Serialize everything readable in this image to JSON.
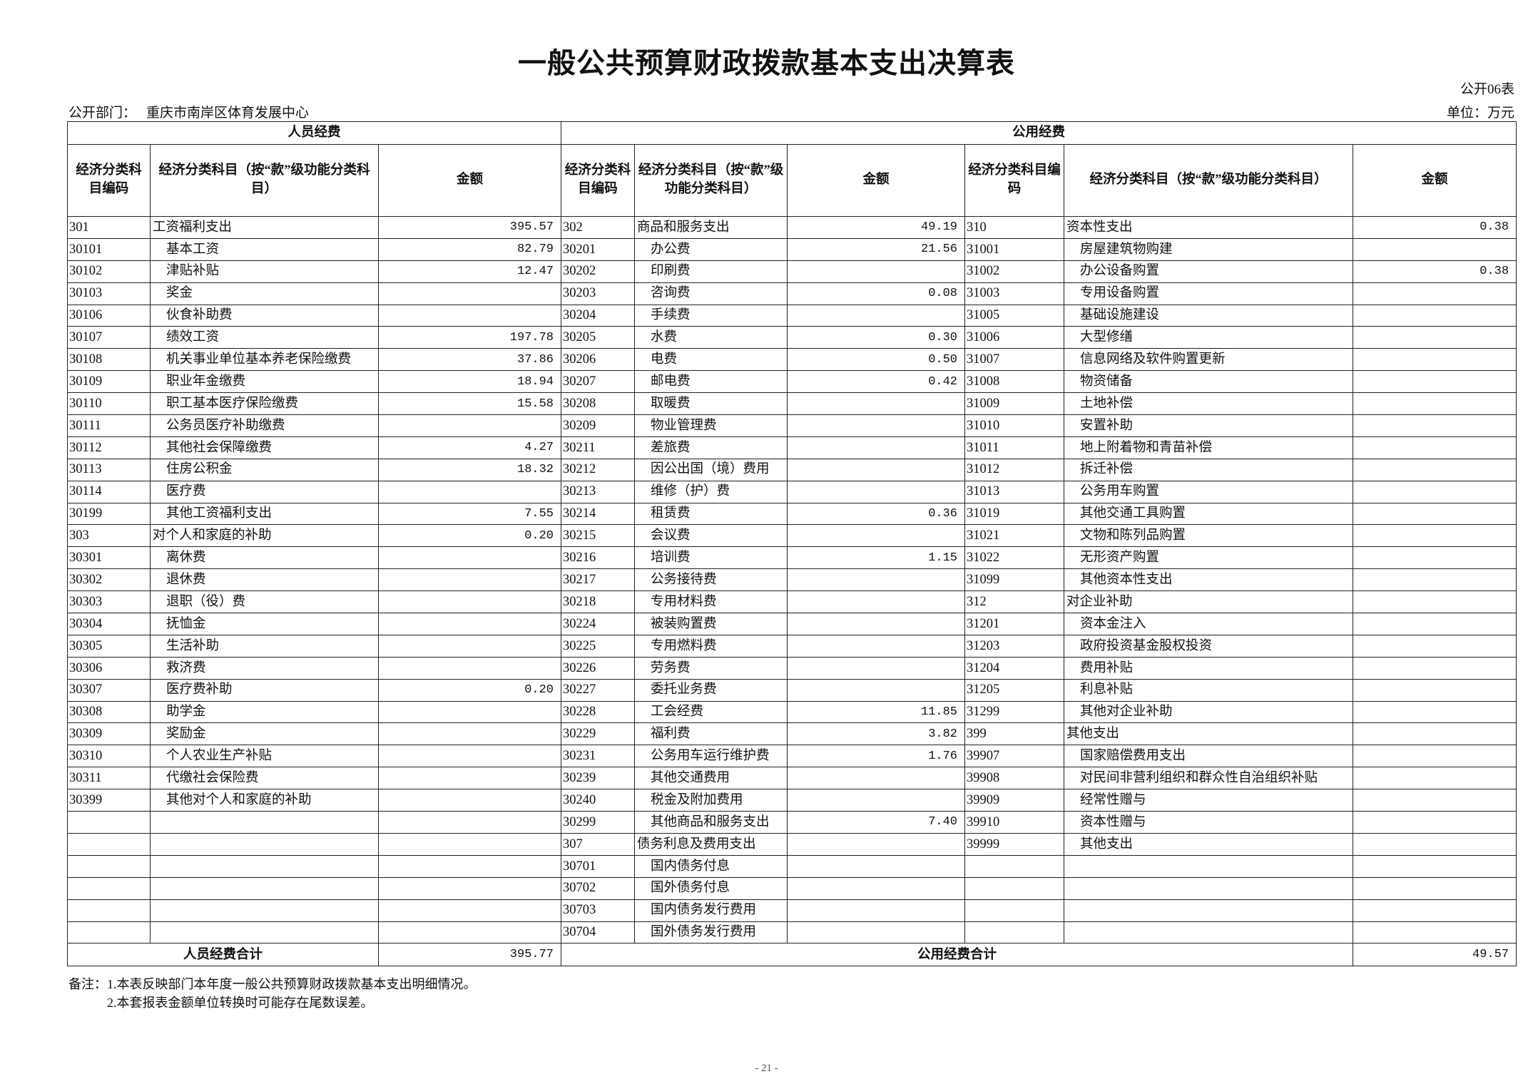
{
  "title": "一般公共预算财政拨款基本支出决算表",
  "table_no": "公开06表",
  "dept_label": "公开部门：",
  "dept_name": "重庆市南岸区体育发展中心",
  "unit": "单位：万元",
  "sections": {
    "personnel": "人员经费",
    "public": "公用经费"
  },
  "headers": {
    "p_code": "经济分类科目编码",
    "p_name": "经济分类科目（按“款”级功能分类科目）",
    "p_amt": "金额",
    "m_code": "经济分类科目编码",
    "m_name": "经济分类科目（按“款”级功能分类科目）",
    "m_amt": "金额",
    "r_code": "经济分类科目编码",
    "r_name": "经济分类科目（按“款”级功能分类科目）",
    "r_amt": "金额"
  },
  "personnel_rows": [
    [
      "301",
      "工资福利支出",
      "395.57"
    ],
    [
      "30101",
      "基本工资",
      "82.79"
    ],
    [
      "30102",
      "津贴补贴",
      "12.47"
    ],
    [
      "30103",
      "奖金",
      ""
    ],
    [
      "30106",
      "伙食补助费",
      ""
    ],
    [
      "30107",
      "绩效工资",
      "197.78"
    ],
    [
      "30108",
      "机关事业单位基本养老保险缴费",
      "37.86"
    ],
    [
      "30109",
      "职业年金缴费",
      "18.94"
    ],
    [
      "30110",
      "职工基本医疗保险缴费",
      "15.58"
    ],
    [
      "30111",
      "公务员医疗补助缴费",
      ""
    ],
    [
      "30112",
      "其他社会保障缴费",
      "4.27"
    ],
    [
      "30113",
      "住房公积金",
      "18.32"
    ],
    [
      "30114",
      "医疗费",
      ""
    ],
    [
      "30199",
      "其他工资福利支出",
      "7.55"
    ],
    [
      "303",
      "对个人和家庭的补助",
      "0.20"
    ],
    [
      "30301",
      "离休费",
      ""
    ],
    [
      "30302",
      "退休费",
      ""
    ],
    [
      "30303",
      "退职（役）费",
      ""
    ],
    [
      "30304",
      "抚恤金",
      ""
    ],
    [
      "30305",
      "生活补助",
      ""
    ],
    [
      "30306",
      "救济费",
      ""
    ],
    [
      "30307",
      "医疗费补助",
      "0.20"
    ],
    [
      "30308",
      "助学金",
      ""
    ],
    [
      "30309",
      "奖励金",
      ""
    ],
    [
      "30310",
      "个人农业生产补贴",
      ""
    ],
    [
      "30311",
      "代缴社会保险费",
      ""
    ],
    [
      "30399",
      "其他对个人和家庭的补助",
      ""
    ]
  ],
  "public_rows_mid": [
    [
      "302",
      "商品和服务支出",
      "49.19"
    ],
    [
      "30201",
      "办公费",
      "21.56"
    ],
    [
      "30202",
      "印刷费",
      ""
    ],
    [
      "30203",
      "咨询费",
      "0.08"
    ],
    [
      "30204",
      "手续费",
      ""
    ],
    [
      "30205",
      "水费",
      "0.30"
    ],
    [
      "30206",
      "电费",
      "0.50"
    ],
    [
      "30207",
      "邮电费",
      "0.42"
    ],
    [
      "30208",
      "取暖费",
      ""
    ],
    [
      "30209",
      "物业管理费",
      ""
    ],
    [
      "30211",
      "差旅费",
      ""
    ],
    [
      "30212",
      "因公出国（境）费用",
      ""
    ],
    [
      "30213",
      "维修（护）费",
      ""
    ],
    [
      "30214",
      "租赁费",
      "0.36"
    ],
    [
      "30215",
      "会议费",
      ""
    ],
    [
      "30216",
      "培训费",
      "1.15"
    ],
    [
      "30217",
      "公务接待费",
      ""
    ],
    [
      "30218",
      "专用材料费",
      ""
    ],
    [
      "30224",
      "被装购置费",
      ""
    ],
    [
      "30225",
      "专用燃料费",
      ""
    ],
    [
      "30226",
      "劳务费",
      ""
    ],
    [
      "30227",
      "委托业务费",
      ""
    ],
    [
      "30228",
      "工会经费",
      "11.85"
    ],
    [
      "30229",
      "福利费",
      "3.82"
    ],
    [
      "30231",
      "公务用车运行维护费",
      "1.76"
    ],
    [
      "30239",
      "其他交通费用",
      ""
    ],
    [
      "30240",
      "税金及附加费用",
      ""
    ],
    [
      "30299",
      "其他商品和服务支出",
      "7.40"
    ],
    [
      "307",
      "债务利息及费用支出",
      ""
    ],
    [
      "30701",
      "国内债务付息",
      ""
    ],
    [
      "30702",
      "国外债务付息",
      ""
    ],
    [
      "30703",
      "国内债务发行费用",
      ""
    ],
    [
      "30704",
      "国外债务发行费用",
      ""
    ]
  ],
  "public_rows_right": [
    [
      "310",
      "资本性支出",
      "0.38"
    ],
    [
      "31001",
      "房屋建筑物购建",
      ""
    ],
    [
      "31002",
      "办公设备购置",
      "0.38"
    ],
    [
      "31003",
      "专用设备购置",
      ""
    ],
    [
      "31005",
      "基础设施建设",
      ""
    ],
    [
      "31006",
      "大型修缮",
      ""
    ],
    [
      "31007",
      "信息网络及软件购置更新",
      ""
    ],
    [
      "31008",
      "物资储备",
      ""
    ],
    [
      "31009",
      "土地补偿",
      ""
    ],
    [
      "31010",
      "安置补助",
      ""
    ],
    [
      "31011",
      "地上附着物和青苗补偿",
      ""
    ],
    [
      "31012",
      "拆迁补偿",
      ""
    ],
    [
      "31013",
      "公务用车购置",
      ""
    ],
    [
      "31019",
      "其他交通工具购置",
      ""
    ],
    [
      "31021",
      "文物和陈列品购置",
      ""
    ],
    [
      "31022",
      "无形资产购置",
      ""
    ],
    [
      "31099",
      "其他资本性支出",
      ""
    ],
    [
      "312",
      "对企业补助",
      ""
    ],
    [
      "31201",
      "资本金注入",
      ""
    ],
    [
      "31203",
      "政府投资基金股权投资",
      ""
    ],
    [
      "31204",
      "费用补贴",
      ""
    ],
    [
      "31205",
      "利息补贴",
      ""
    ],
    [
      "31299",
      "其他对企业补助",
      ""
    ],
    [
      "399",
      "其他支出",
      ""
    ],
    [
      "39907",
      "国家赔偿费用支出",
      ""
    ],
    [
      "39908",
      "对民间非营利组织和群众性自治组织补贴",
      ""
    ],
    [
      "39909",
      "经常性赠与",
      ""
    ],
    [
      "39910",
      "资本性赠与",
      ""
    ],
    [
      "39999",
      "其他支出",
      ""
    ]
  ],
  "totals": {
    "personnel_label": "人员经费合计",
    "personnel_value": "395.77",
    "public_label": "公用经费合计",
    "public_value": "49.57"
  },
  "notes": [
    "备注：1.本表反映部门本年度一般公共预算财政拨款基本支出明细情况。",
    "2.本套报表金额单位转换时可能存在尾数误差。"
  ],
  "page_number": "- 21 -"
}
